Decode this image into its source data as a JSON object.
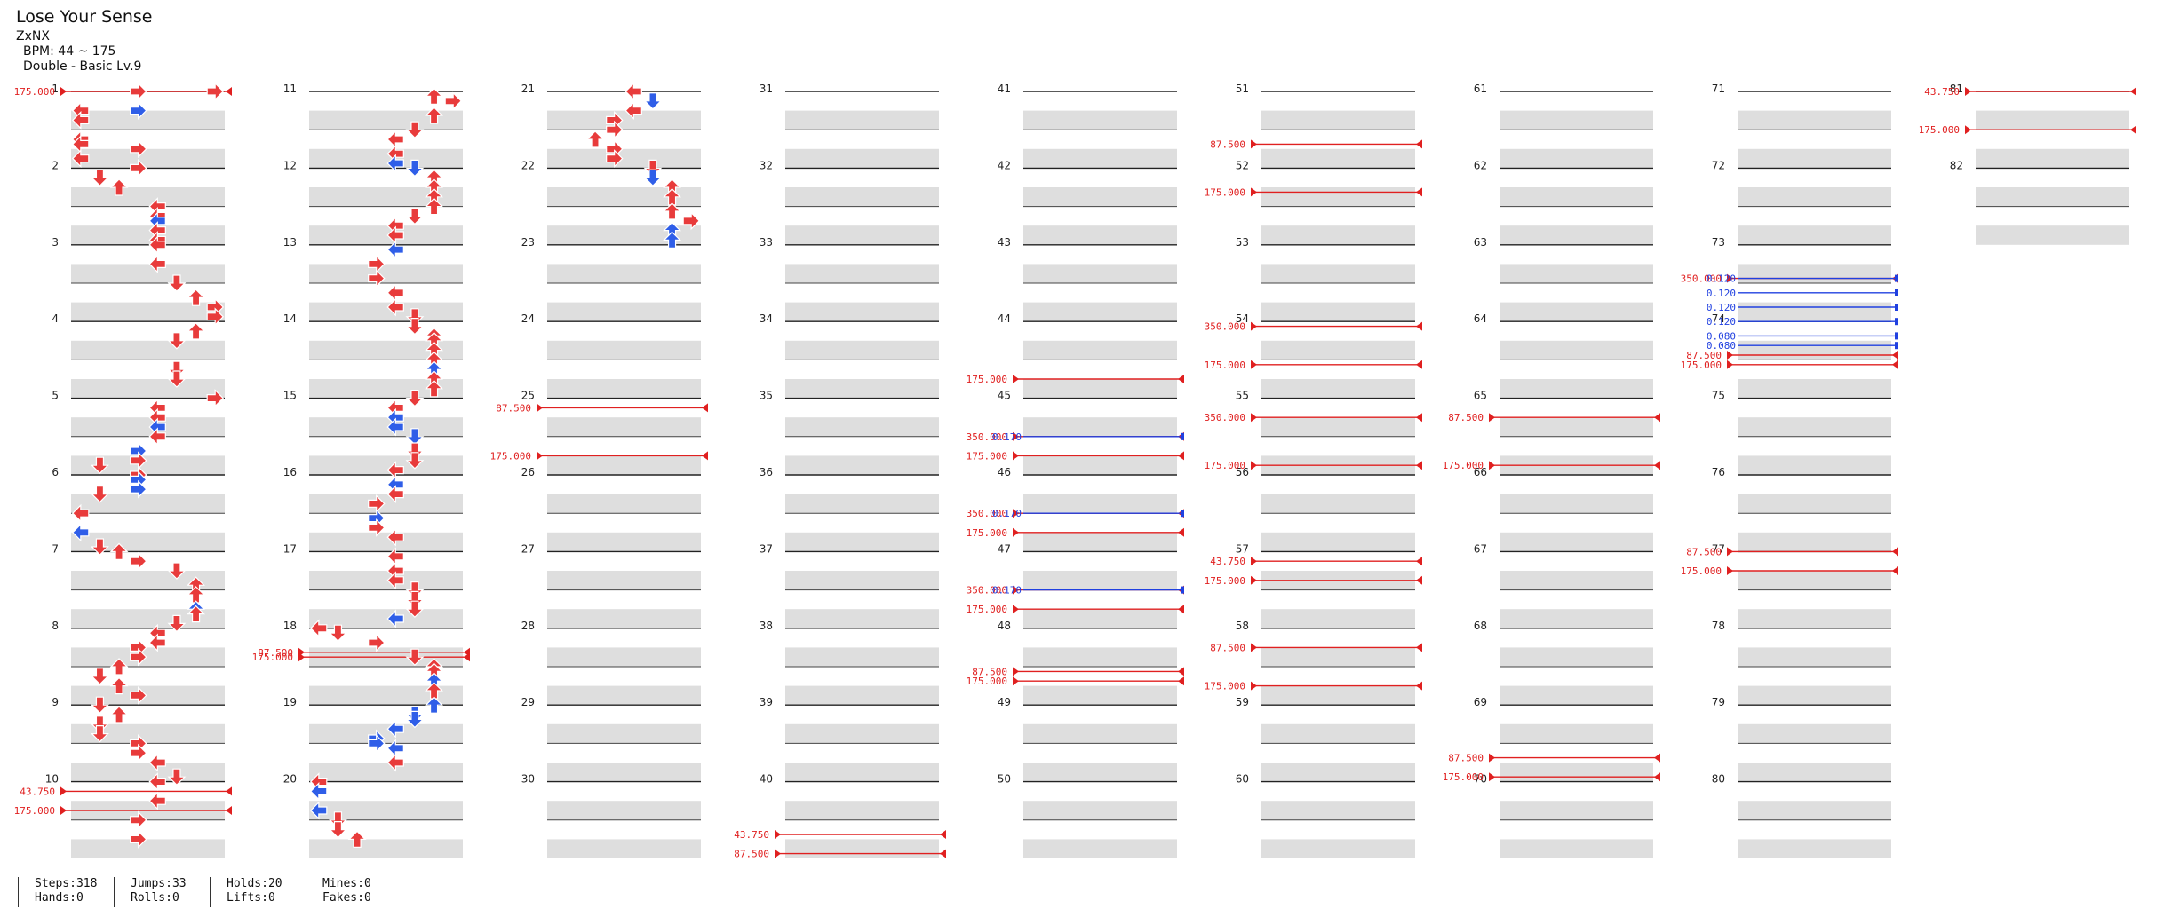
{
  "song": {
    "title": "Lose Your Sense",
    "artist": "ZxNX",
    "bpm_text": "BPM: 44 ~ 175",
    "difficulty_text": "Double - Basic  Lv.9"
  },
  "chart_data": {
    "type": "step_chart",
    "measures_total": 82,
    "bpm_markers": [
      {
        "measure": 1,
        "beat": 0,
        "value": "175.000"
      },
      {
        "measure": 10,
        "beat": 0.5,
        "value": "43.750"
      },
      {
        "measure": 10,
        "beat": 1.5,
        "value": "175.000"
      },
      {
        "measure": 18,
        "beat": 1.25,
        "value": "87.500"
      },
      {
        "measure": 18,
        "beat": 1.5,
        "value": "175.000"
      },
      {
        "measure": 25,
        "beat": 0.5,
        "value": "87.500"
      },
      {
        "measure": 25,
        "beat": 3.0,
        "value": "175.000"
      },
      {
        "measure": 40,
        "beat": 2.75,
        "value": "43.750"
      },
      {
        "measure": 40,
        "beat": 3.75,
        "value": "87.500"
      },
      {
        "measure": 44,
        "beat": 3.0,
        "value": "175.000"
      },
      {
        "measure": 45,
        "beat": 2.0,
        "value": "350.000"
      },
      {
        "measure": 45,
        "beat": 3.0,
        "value": "175.000"
      },
      {
        "measure": 46,
        "beat": 2.0,
        "value": "350.000"
      },
      {
        "measure": 46,
        "beat": 3.0,
        "value": "175.000"
      },
      {
        "measure": 47,
        "beat": 2.0,
        "value": "350.000"
      },
      {
        "measure": 47,
        "beat": 3.0,
        "value": "175.000"
      },
      {
        "measure": 48,
        "beat": 2.25,
        "value": "87.500"
      },
      {
        "measure": 48,
        "beat": 2.75,
        "value": "175.000"
      },
      {
        "measure": 51,
        "beat": 2.75,
        "value": "87.500"
      },
      {
        "measure": 52,
        "beat": 1.25,
        "value": "175.000"
      },
      {
        "measure": 54,
        "beat": 0.25,
        "value": "350.000"
      },
      {
        "measure": 54,
        "beat": 2.25,
        "value": "175.000"
      },
      {
        "measure": 55,
        "beat": 1.0,
        "value": "350.000"
      },
      {
        "measure": 55,
        "beat": 3.5,
        "value": "175.000"
      },
      {
        "measure": 57,
        "beat": 0.5,
        "value": "43.750"
      },
      {
        "measure": 57,
        "beat": 1.5,
        "value": "175.000"
      },
      {
        "measure": 58,
        "beat": 1.0,
        "value": "87.500"
      },
      {
        "measure": 58,
        "beat": 3.0,
        "value": "175.000"
      },
      {
        "measure": 65,
        "beat": 1.0,
        "value": "87.500"
      },
      {
        "measure": 65,
        "beat": 3.5,
        "value": "175.000"
      },
      {
        "measure": 69,
        "beat": 2.75,
        "value": "87.500"
      },
      {
        "measure": 69,
        "beat": 3.75,
        "value": "175.000"
      },
      {
        "measure": 73,
        "beat": 1.75,
        "value": "350.000"
      },
      {
        "measure": 74,
        "beat": 1.75,
        "value": "87.500"
      },
      {
        "measure": 74,
        "beat": 2.25,
        "value": "175.000"
      },
      {
        "measure": 77,
        "beat": 0.0,
        "value": "87.500"
      },
      {
        "measure": 77,
        "beat": 1.0,
        "value": "175.000"
      },
      {
        "measure": 81,
        "beat": 0.0,
        "value": "43.750"
      },
      {
        "measure": 81,
        "beat": 2.0,
        "value": "175.000"
      }
    ],
    "stop_markers": [
      {
        "measure": 45,
        "beat": 2.0,
        "value": "0.170"
      },
      {
        "measure": 46,
        "beat": 2.0,
        "value": "0.170"
      },
      {
        "measure": 47,
        "beat": 2.0,
        "value": "0.170"
      },
      {
        "measure": 73,
        "beat": 1.75,
        "value": "0.120"
      },
      {
        "measure": 73,
        "beat": 2.5,
        "value": "0.120"
      },
      {
        "measure": 73,
        "beat": 3.25,
        "value": "0.120"
      },
      {
        "measure": 74,
        "beat": 0.0,
        "value": "0.120"
      },
      {
        "measure": 74,
        "beat": 0.75,
        "value": "0.080"
      },
      {
        "measure": 74,
        "beat": 1.25,
        "value": "0.080"
      }
    ],
    "notes": [
      [
        1,
        0,
        3,
        "r"
      ],
      [
        1,
        0,
        7,
        "r"
      ],
      [
        1,
        1,
        0,
        "r"
      ],
      [
        1,
        1,
        3,
        "b"
      ],
      [
        1,
        1.5,
        0,
        "r"
      ],
      [
        1,
        2.5,
        0,
        "r"
      ],
      [
        1,
        2.75,
        0,
        "r"
      ],
      [
        1,
        3,
        3,
        "r"
      ],
      [
        1,
        3.5,
        0,
        "r"
      ],
      [
        2,
        0,
        3,
        "r"
      ],
      [
        2,
        0.5,
        1,
        "r"
      ],
      [
        2,
        1,
        2,
        "r"
      ],
      [
        2,
        2,
        4,
        "r"
      ],
      [
        2,
        2.5,
        4,
        "r"
      ],
      [
        2,
        2.75,
        4,
        "b"
      ],
      [
        2,
        3.25,
        4,
        "r"
      ],
      [
        2,
        3.75,
        4,
        "r"
      ],
      [
        3,
        0,
        4,
        "r"
      ],
      [
        3,
        1,
        4,
        "r"
      ],
      [
        3,
        2,
        5,
        "r"
      ],
      [
        3,
        2.75,
        6,
        "r"
      ],
      [
        3,
        3.25,
        7,
        "r"
      ],
      [
        3,
        3.75,
        7,
        "r"
      ],
      [
        4,
        0.5,
        6,
        "r"
      ],
      [
        4,
        1,
        5,
        "r"
      ],
      [
        4,
        2.5,
        5,
        "r"
      ],
      [
        4,
        3,
        5,
        "r"
      ],
      [
        5,
        0,
        7,
        "r"
      ],
      [
        5,
        0.5,
        4,
        "r"
      ],
      [
        5,
        1,
        4,
        "r"
      ],
      [
        5,
        1.5,
        4,
        "b"
      ],
      [
        5,
        2,
        4,
        "r"
      ],
      [
        5,
        2.75,
        3,
        "b"
      ],
      [
        5,
        3.25,
        3,
        "r"
      ],
      [
        5,
        3.5,
        1,
        "r"
      ],
      [
        6,
        0,
        3,
        "r"
      ],
      [
        6,
        0.25,
        3,
        "b"
      ],
      [
        6,
        0.75,
        3,
        "b"
      ],
      [
        6,
        1,
        1,
        "r"
      ],
      [
        6,
        2,
        0,
        "r"
      ],
      [
        6,
        3,
        0,
        "b"
      ],
      [
        6,
        3.75,
        1,
        "r"
      ],
      [
        7,
        0,
        2,
        "r"
      ],
      [
        7,
        0.5,
        3,
        "r"
      ],
      [
        7,
        1,
        5,
        "r"
      ],
      [
        7,
        1.75,
        6,
        "r"
      ],
      [
        7,
        2.25,
        6,
        "r"
      ],
      [
        7,
        3,
        6,
        "b"
      ],
      [
        7,
        3.25,
        6,
        "r"
      ],
      [
        7,
        3.75,
        5,
        "r"
      ],
      [
        8,
        0.25,
        4,
        "r"
      ],
      [
        8,
        0.75,
        4,
        "r"
      ],
      [
        8,
        1,
        3,
        "r"
      ],
      [
        8,
        1.5,
        3,
        "r"
      ],
      [
        8,
        2,
        2,
        "r"
      ],
      [
        8,
        2.5,
        1,
        "r"
      ],
      [
        8,
        3,
        2,
        "r"
      ],
      [
        8,
        3.5,
        3,
        "r"
      ],
      [
        9,
        0,
        1,
        "r"
      ],
      [
        9,
        0.5,
        2,
        "r"
      ],
      [
        9,
        1,
        1,
        "r"
      ],
      [
        9,
        1.5,
        1,
        "r"
      ],
      [
        9,
        2,
        3,
        "r"
      ],
      [
        9,
        2.5,
        3,
        "r"
      ],
      [
        9,
        3,
        4,
        "r"
      ],
      [
        9,
        3.75,
        5,
        "r"
      ],
      [
        10,
        0,
        4,
        "r"
      ],
      [
        10,
        1,
        4,
        "r"
      ],
      [
        10,
        2,
        3,
        "r"
      ],
      [
        10,
        3,
        3,
        "r"
      ],
      [
        11,
        0.25,
        6,
        "r"
      ],
      [
        11,
        0.5,
        7,
        "r"
      ],
      [
        11,
        1.25,
        6,
        "r"
      ],
      [
        11,
        2,
        5,
        "r"
      ],
      [
        11,
        2.5,
        4,
        "r"
      ],
      [
        11,
        3.25,
        4,
        "r"
      ],
      [
        11,
        3.75,
        4,
        "b"
      ],
      [
        12,
        0,
        5,
        "b"
      ],
      [
        12,
        0.5,
        6,
        "r"
      ],
      [
        12,
        1,
        6,
        "r"
      ],
      [
        12,
        1.5,
        6,
        "r"
      ],
      [
        12,
        2,
        6,
        "r"
      ],
      [
        12,
        2.5,
        5,
        "r"
      ],
      [
        12,
        3,
        4,
        "r"
      ],
      [
        12,
        3.5,
        4,
        "r"
      ],
      [
        13,
        0.25,
        4,
        "b"
      ],
      [
        13,
        1,
        3,
        "r"
      ],
      [
        13,
        1.75,
        3,
        "r"
      ],
      [
        13,
        2.5,
        4,
        "r"
      ],
      [
        13,
        3.25,
        4,
        "r"
      ],
      [
        13,
        3.75,
        5,
        "r"
      ],
      [
        14,
        0.25,
        5,
        "r"
      ],
      [
        14,
        0.75,
        6,
        "r"
      ],
      [
        14,
        1,
        6,
        "r"
      ],
      [
        14,
        1.5,
        6,
        "r"
      ],
      [
        14,
        2,
        6,
        "r"
      ],
      [
        14,
        2.5,
        6,
        "b"
      ],
      [
        14,
        3,
        6,
        "r"
      ],
      [
        14,
        3.5,
        6,
        "r"
      ],
      [
        15,
        0,
        5,
        "r"
      ],
      [
        15,
        0.5,
        4,
        "r"
      ],
      [
        15,
        1,
        4,
        "b"
      ],
      [
        15,
        1.5,
        4,
        "b"
      ],
      [
        15,
        2,
        5,
        "b"
      ],
      [
        15,
        2.75,
        5,
        "r"
      ],
      [
        15,
        3.25,
        5,
        "r"
      ],
      [
        15,
        3.75,
        4,
        "r"
      ],
      [
        16,
        0.5,
        4,
        "b"
      ],
      [
        16,
        1,
        4,
        "r"
      ],
      [
        16,
        1.5,
        3,
        "r"
      ],
      [
        16,
        2.25,
        3,
        "b"
      ],
      [
        16,
        2.75,
        3,
        "r"
      ],
      [
        16,
        3.25,
        4,
        "r"
      ],
      [
        17,
        0.25,
        4,
        "r"
      ],
      [
        17,
        1,
        4,
        "r"
      ],
      [
        17,
        1.5,
        4,
        "r"
      ],
      [
        17,
        2,
        5,
        "r"
      ],
      [
        17,
        2.5,
        5,
        "r"
      ],
      [
        17,
        3,
        5,
        "r"
      ],
      [
        17,
        3.5,
        4,
        "b"
      ],
      [
        18,
        0,
        0,
        "r"
      ],
      [
        18,
        0.25,
        1,
        "r"
      ],
      [
        18,
        0.75,
        3,
        "r"
      ],
      [
        18,
        1.5,
        5,
        "r"
      ],
      [
        18,
        2,
        6,
        "r"
      ],
      [
        18,
        2.25,
        6,
        "r"
      ],
      [
        18,
        2.75,
        6,
        "b"
      ],
      [
        18,
        3.25,
        6,
        "r"
      ],
      [
        19,
        0,
        6,
        "b"
      ],
      [
        19,
        0.5,
        5,
        "b"
      ],
      [
        19,
        0.75,
        5,
        "b"
      ],
      [
        19,
        1.25,
        4,
        "b"
      ],
      [
        19,
        1.75,
        3,
        "b"
      ],
      [
        19,
        2,
        3,
        "b"
      ],
      [
        19,
        2.25,
        4,
        "b"
      ],
      [
        19,
        3,
        4,
        "r"
      ],
      [
        20,
        0,
        0,
        "r"
      ],
      [
        20,
        0.5,
        0,
        "b"
      ],
      [
        20,
        1.5,
        0,
        "b"
      ],
      [
        20,
        2,
        1,
        "r"
      ],
      [
        20,
        2.5,
        1,
        "r"
      ],
      [
        20,
        3,
        2,
        "r"
      ],
      [
        21,
        0,
        4,
        "r"
      ],
      [
        21,
        0.5,
        5,
        "b"
      ],
      [
        21,
        1,
        4,
        "r"
      ],
      [
        21,
        1.5,
        3,
        "r"
      ],
      [
        21,
        2,
        3,
        "r"
      ],
      [
        21,
        2.5,
        2,
        "r"
      ],
      [
        21,
        3,
        3,
        "r"
      ],
      [
        21,
        3.5,
        3,
        "r"
      ],
      [
        22,
        0,
        5,
        "r"
      ],
      [
        22,
        0.5,
        5,
        "b"
      ],
      [
        22,
        1,
        6,
        "r"
      ],
      [
        22,
        1.5,
        6,
        "r"
      ],
      [
        22,
        2.25,
        6,
        "r"
      ],
      [
        22,
        2.75,
        7,
        "r"
      ],
      [
        22,
        3.25,
        6,
        "b"
      ],
      [
        22,
        3.75,
        6,
        "b"
      ]
    ]
  },
  "stats": {
    "steps": "Steps:318",
    "hands": "Hands:0",
    "jumps": "Jumps:33",
    "rolls": "Rolls:0",
    "holds": "Holds:20",
    "lifts": "Lifts:0",
    "mines": "Mines:0",
    "fakes": "Fakes:0"
  }
}
